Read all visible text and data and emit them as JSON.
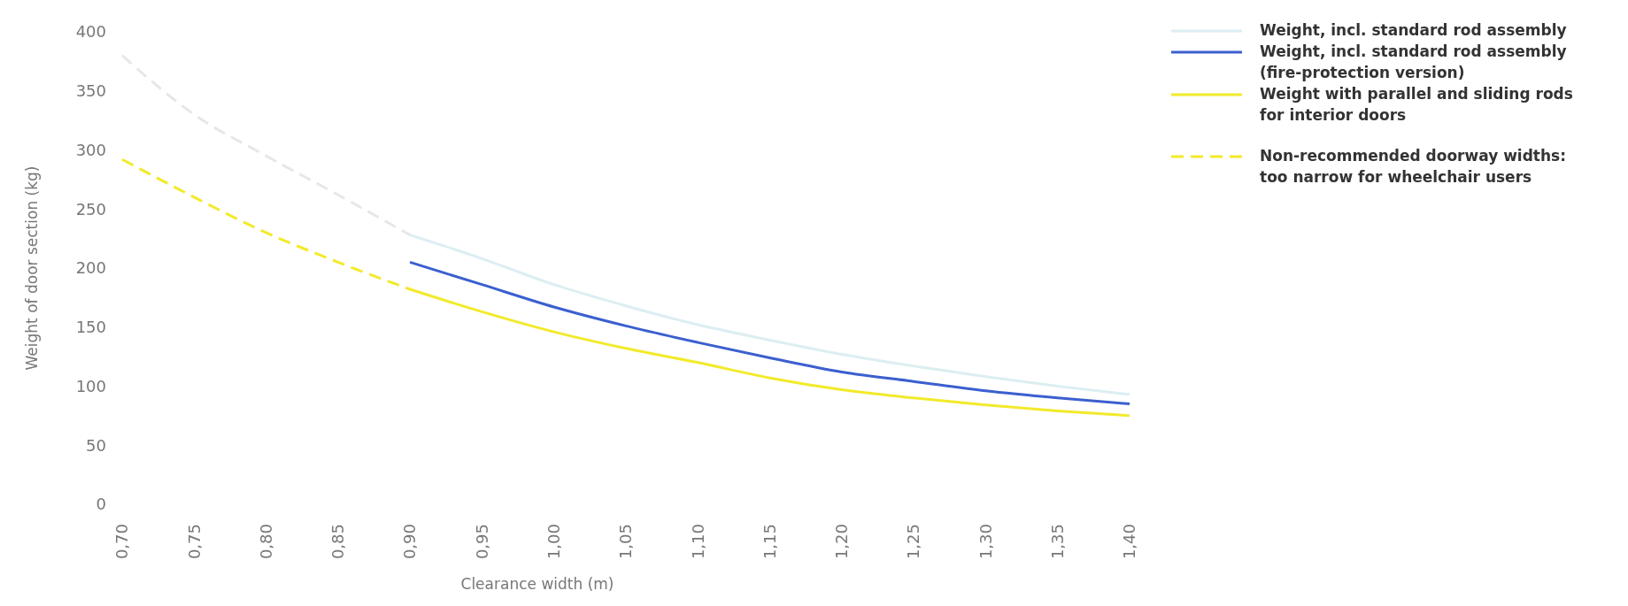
{
  "chart_data": {
    "type": "line",
    "xlabel": "Clearance width (m)",
    "ylabel": "Weight of door section (kg)",
    "xlim": [
      0.7,
      1.4
    ],
    "ylim": [
      0,
      400
    ],
    "xticks": [
      {
        "value": 0.7,
        "label": "0,70"
      },
      {
        "value": 0.75,
        "label": "0,75"
      },
      {
        "value": 0.8,
        "label": "0,80"
      },
      {
        "value": 0.85,
        "label": "0,85"
      },
      {
        "value": 0.9,
        "label": "0,90"
      },
      {
        "value": 0.95,
        "label": "0,95"
      },
      {
        "value": 1.0,
        "label": "1,00"
      },
      {
        "value": 1.05,
        "label": "1,05"
      },
      {
        "value": 1.1,
        "label": "1,10"
      },
      {
        "value": 1.15,
        "label": "1,15"
      },
      {
        "value": 1.2,
        "label": "1,20"
      },
      {
        "value": 1.25,
        "label": "1,25"
      },
      {
        "value": 1.3,
        "label": "1,30"
      },
      {
        "value": 1.35,
        "label": "1,35"
      },
      {
        "value": 1.4,
        "label": "1,40"
      }
    ],
    "yticks": [
      0,
      50,
      100,
      150,
      200,
      250,
      300,
      350,
      400
    ],
    "grid": false,
    "legend": "right",
    "series": [
      {
        "name": "Weight, incl. standard rod assembly",
        "color": "#dceef2",
        "line_style": "solid",
        "x": [
          0.9,
          0.95,
          1.0,
          1.05,
          1.1,
          1.15,
          1.2,
          1.25,
          1.3,
          1.35,
          1.4
        ],
        "values": [
          228,
          208,
          186,
          168,
          152,
          139,
          127,
          117,
          108,
          100,
          93
        ]
      },
      {
        "name": "Weight, incl. standard rod assembly (fire-protection version)",
        "color": "#3b5fcf",
        "line_style": "solid",
        "x": [
          0.9,
          0.95,
          1.0,
          1.05,
          1.1,
          1.15,
          1.2,
          1.25,
          1.3,
          1.35,
          1.4
        ],
        "values": [
          205,
          186,
          167,
          151,
          137,
          124,
          112,
          104,
          96,
          90,
          85
        ]
      },
      {
        "name": "Weight with parallel and sliding rods for interior doors",
        "color": "#f2ea2a",
        "line_style": "solid",
        "x": [
          0.9,
          0.95,
          1.0,
          1.05,
          1.1,
          1.15,
          1.2,
          1.25,
          1.3,
          1.35,
          1.4
        ],
        "values": [
          182,
          163,
          146,
          132,
          120,
          107,
          97,
          90,
          84,
          79,
          75
        ]
      },
      {
        "name": "Non-recommended doorway widths: too narrow for wheelchair users",
        "color": "#f2ea2a",
        "line_style": "dashed",
        "x": [
          0.7,
          0.75,
          0.8,
          0.85,
          0.9
        ],
        "values": [
          292,
          260,
          230,
          205,
          182
        ]
      },
      {
        "color": "#e4e8e8",
        "line_style": "dashed",
        "x": [
          0.7,
          0.75,
          0.8,
          0.85,
          0.9
        ],
        "values": [
          380,
          330,
          295,
          262,
          228
        ]
      }
    ]
  }
}
